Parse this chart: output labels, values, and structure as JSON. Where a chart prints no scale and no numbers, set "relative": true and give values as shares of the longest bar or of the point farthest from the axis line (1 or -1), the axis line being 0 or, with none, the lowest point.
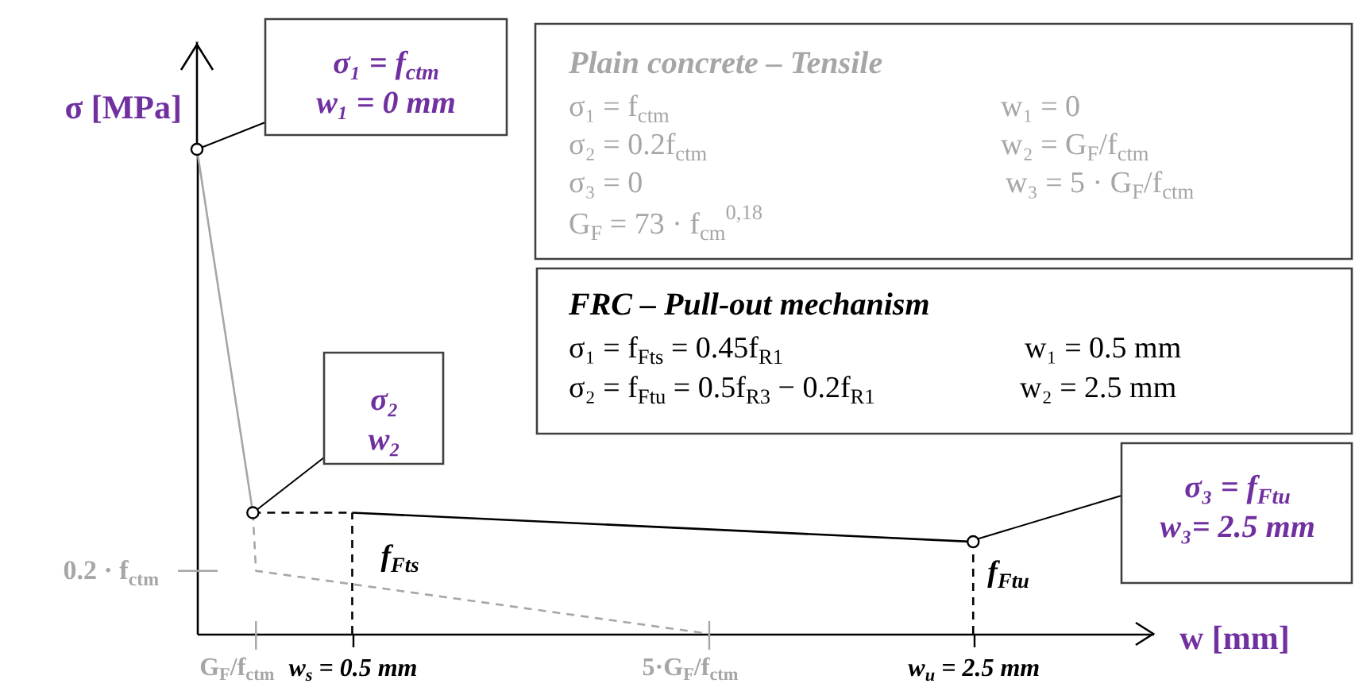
{
  "chart_data": {
    "type": "line",
    "relative": true,
    "xlim": [
      0,
      3.08
    ],
    "xticks": [
      {
        "value": 0.5,
        "label": "w$_{s}$ = 0.5 mm"
      },
      {
        "value": 2.5,
        "label": "w$_{u}$ = 2.5 mm"
      }
    ],
    "xlabel": "w [mm]",
    "ylabel": "σ [MPa]",
    "series": [
      {
        "color": "#a6a6a6",
        "x": [
          0,
          0.18
        ],
        "values": [
          1,
          0.25
        ]
      },
      {
        "color": "#a6a6a6",
        "line_style": "dashed",
        "x": [
          0.18,
          0.19,
          1.65
        ],
        "values": [
          0.25,
          0.13,
          0
        ]
      },
      {
        "color": "#000000",
        "line_style": "dashed",
        "x": [
          0.18,
          0.5
        ],
        "values": [
          0.25,
          0.25
        ]
      },
      {
        "color": "#000000",
        "x": [
          0.5,
          2.5
        ],
        "values": [
          0.25,
          0.19
        ]
      },
      {
        "color": "#000000",
        "line_style": "dashed",
        "x": [
          0.5,
          0.5
        ],
        "values": [
          0,
          0.25
        ]
      },
      {
        "color": "#000000",
        "line_style": "dashed",
        "x": [
          2.5,
          2.5
        ],
        "values": [
          0,
          0.19
        ]
      },
      {
        "type": "scatter",
        "color": "#000000",
        "marker": "circle",
        "x": [
          0,
          0.18,
          2.5
        ],
        "values": [
          1,
          0.25,
          0.19
        ]
      }
    ],
    "ref_lines": [
      {
        "axis": "y",
        "value": 0.13,
        "label": "0.2 · f$_{ctm}$",
        "color": "#a6a6a6"
      },
      {
        "axis": "x",
        "value": 0.19,
        "label": "G$_{F}$/f$_{ctm}$",
        "color": "#a6a6a6"
      },
      {
        "axis": "x",
        "value": 1.65,
        "label": "5·G$_{F}$/f$_{ctm}$",
        "color": "#a6a6a6"
      }
    ],
    "annotations": [
      "σ₁ = f$_{ctm}$\nw₁ = 0 mm",
      "σ₂\nw₂",
      "σ₃ = f$_{Ftu}$\nw₃= 2.5 mm",
      {
        "text": "f$_{Fts}$",
        "x": 0.5,
        "y": 0.25
      },
      {
        "text": "f$_{Ftu}$",
        "x": 2.5,
        "y": 0.19
      },
      "Plain concrete – Tensile",
      "σ₁ = f$_{ctm}$",
      "w₁ = 0",
      "σ₂ = 0.2f$_{ctm}$",
      "w₂ = G$_{F}$/f$_{ctm}$",
      "σ₃ = 0",
      "w₃ = 5 · G$_{F}$/f$_{ctm}$",
      "G$_{F}$ = 73 · f$_{cm}$$^{0,18}$",
      "FRC – Pull-out mechanism",
      "σ₁ = f$_{Fts}$ = 0.45f$_{R1}$",
      "w₁ = 0.5 mm",
      "σ₂ = f$_{Ftu}$ = 0.5f$_{R3}$ − 0.2f$_{R1}$",
      "w₂ = 2.5 mm"
    ]
  }
}
